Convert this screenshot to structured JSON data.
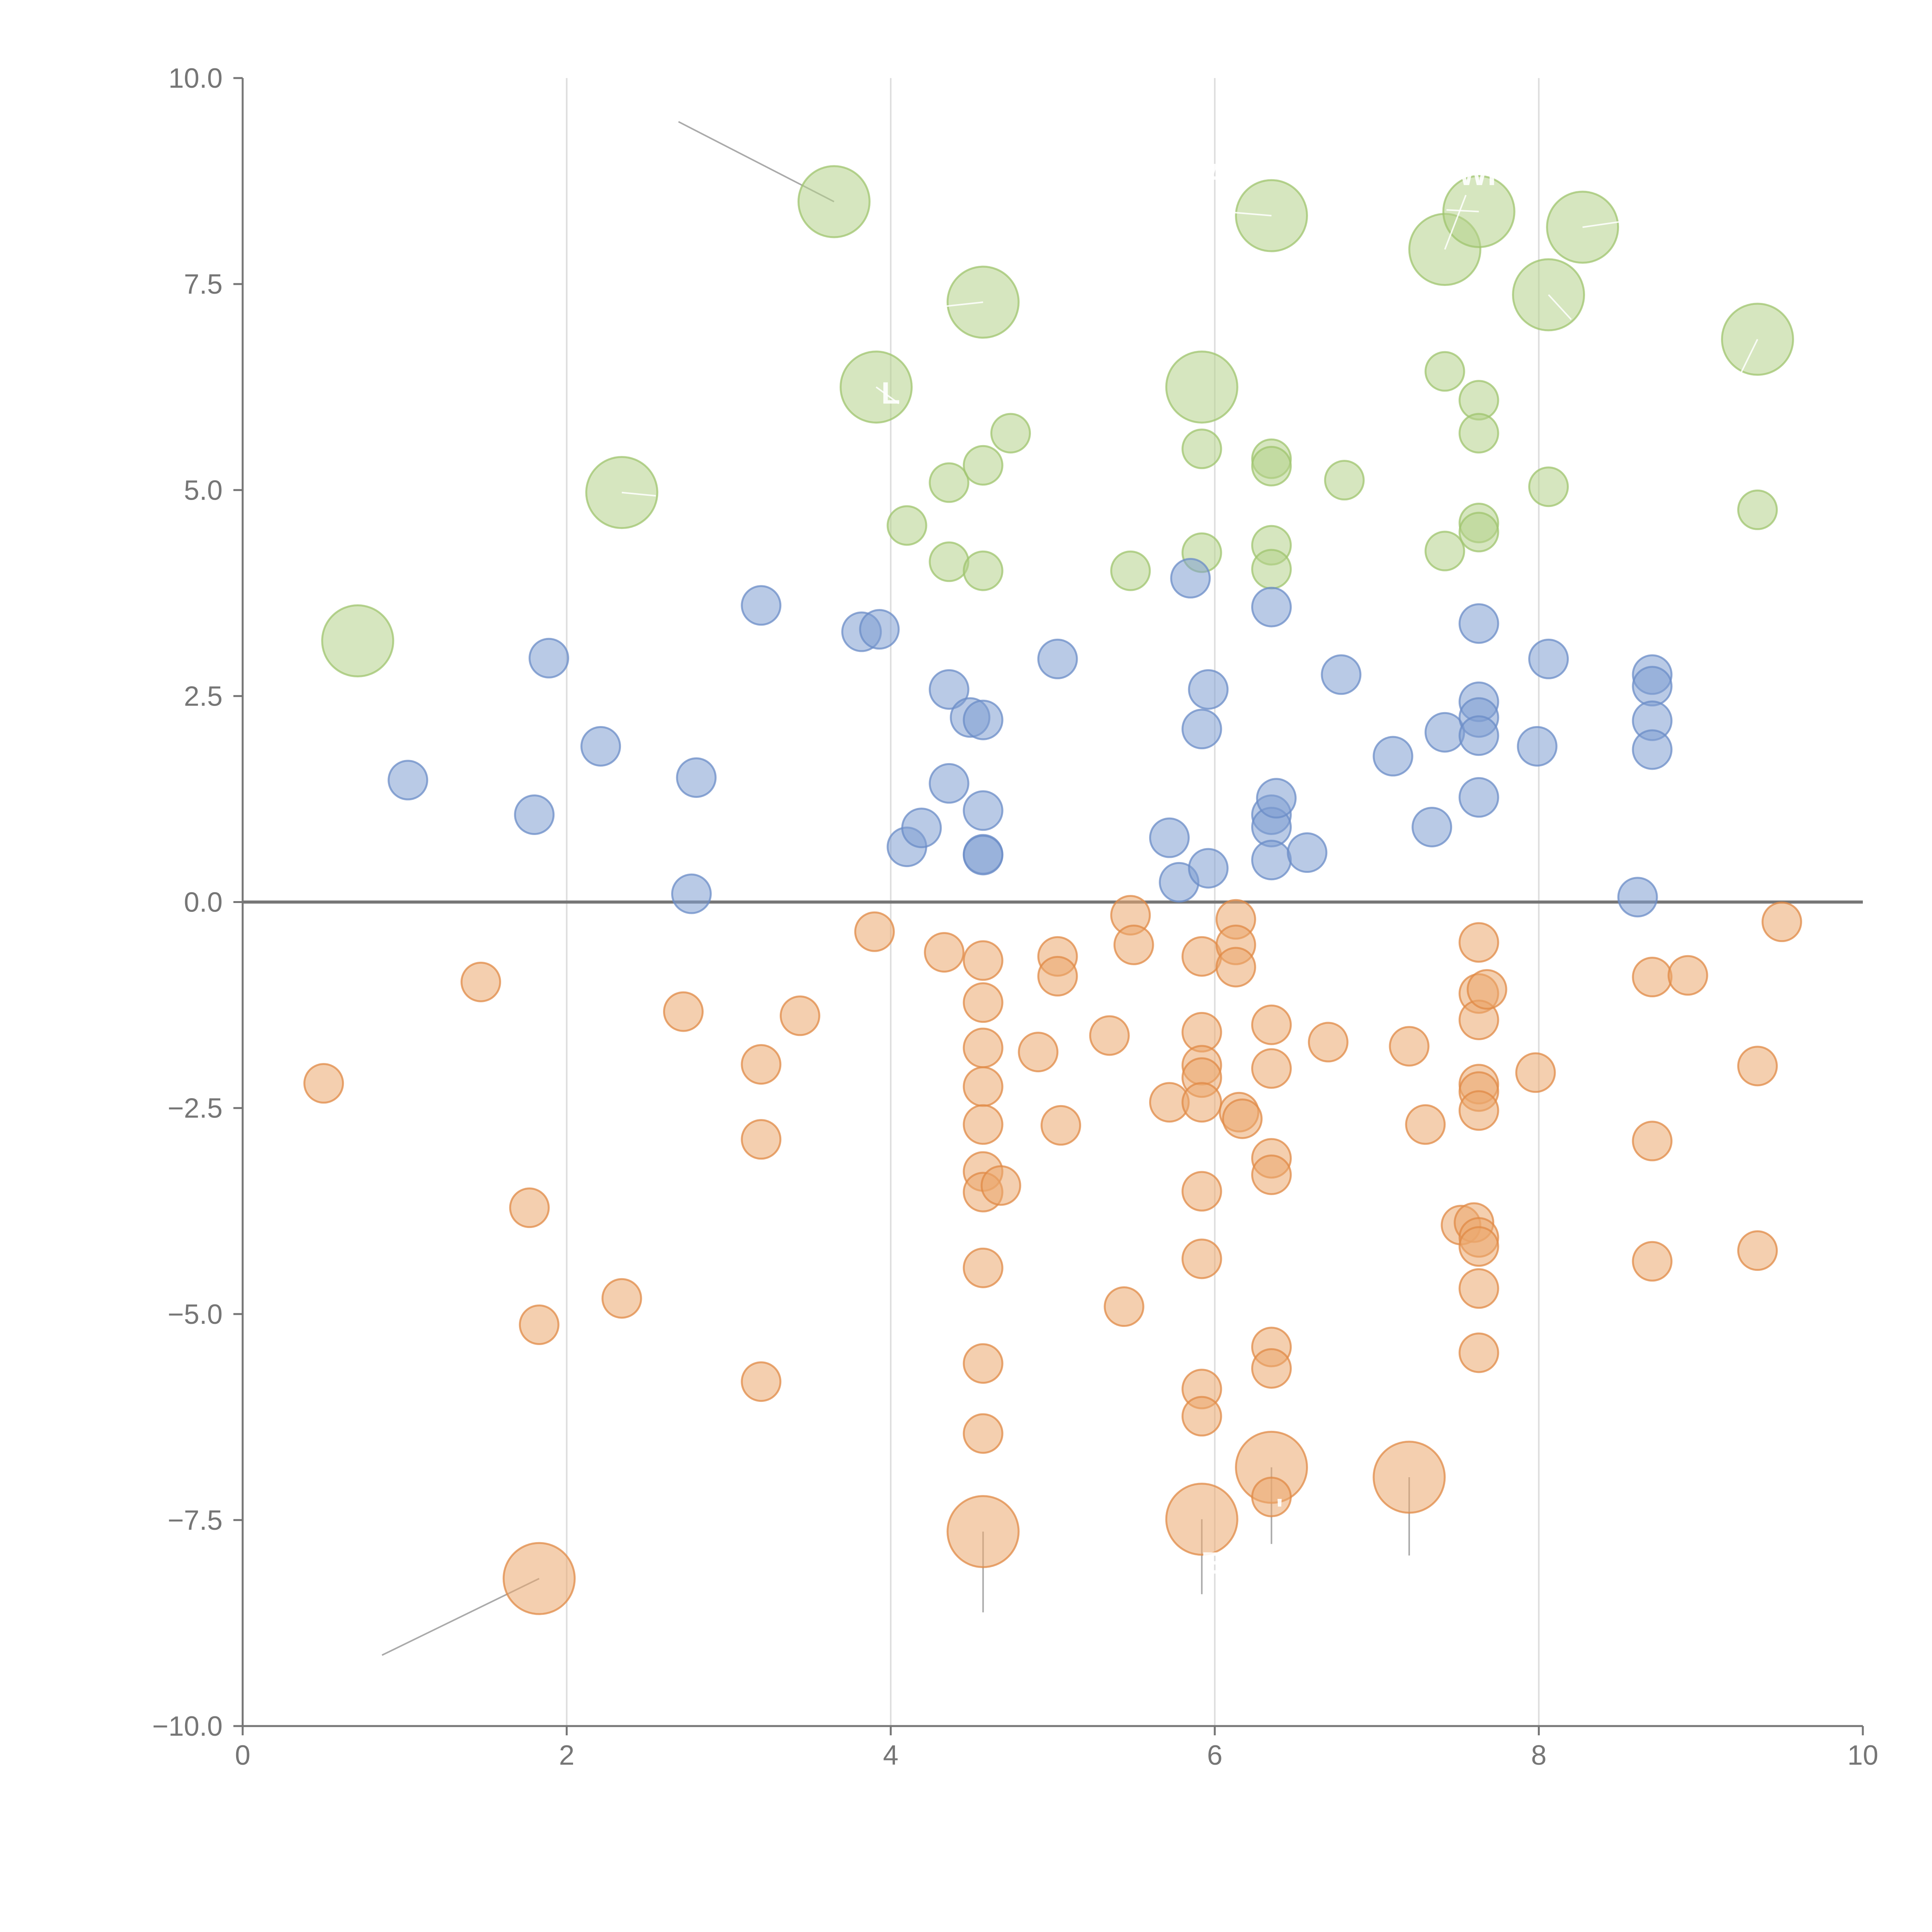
{
  "chart_data": {
    "type": "scatter",
    "title": "",
    "xlabel": "",
    "ylabel": "",
    "xlim": [
      0,
      10
    ],
    "ylim": [
      -10,
      10
    ],
    "grid": "x",
    "zero_line": 0,
    "x_ticks": [
      "0",
      "2",
      "4",
      "6",
      "8",
      "10"
    ],
    "x_tick_values": [
      0,
      2,
      4,
      6,
      8,
      10
    ],
    "y_ticks": [
      "10.0",
      "7.5",
      "5.0",
      "2.5",
      "0.0",
      "−2.5",
      "−5.0",
      "−7.5",
      "−10.0"
    ],
    "y_tick_values": [
      10,
      7.5,
      5,
      2.5,
      0,
      -2.5,
      -5,
      -7.5,
      -10
    ],
    "colors": {
      "green": "#b5d18b",
      "green_stroke": "#9fc46e",
      "blue": "#7f9fd2",
      "blue_stroke": "#6b8cc7",
      "orange": "#eba86e",
      "orange_stroke": "#e08a45",
      "axis": "#767676",
      "grid": "#dddddd"
    },
    "series": [
      {
        "name": "green",
        "color": "#b5d18b",
        "points": [
          [
            0.71,
            3.17,
            2
          ],
          [
            2.34,
            4.97,
            2
          ],
          [
            3.65,
            8.5,
            2
          ],
          [
            3.91,
            6.25,
            2
          ],
          [
            4.57,
            7.28,
            2
          ],
          [
            5.92,
            6.25,
            2
          ],
          [
            6.35,
            8.33,
            2
          ],
          [
            7.42,
            7.92,
            2
          ],
          [
            7.63,
            8.38,
            2
          ],
          [
            8.06,
            7.37,
            2
          ],
          [
            8.27,
            8.19,
            2
          ],
          [
            9.35,
            6.83,
            2
          ],
          [
            4.1,
            4.57,
            1
          ],
          [
            4.36,
            5.09,
            1
          ],
          [
            4.36,
            4.13,
            1
          ],
          [
            4.57,
            5.3,
            1
          ],
          [
            4.57,
            4.02,
            1
          ],
          [
            4.74,
            5.69,
            1
          ],
          [
            5.48,
            4.02,
            1
          ],
          [
            5.92,
            5.5,
            1
          ],
          [
            5.92,
            4.24,
            1
          ],
          [
            6.35,
            5.38,
            1
          ],
          [
            6.35,
            5.29,
            1
          ],
          [
            6.35,
            4.33,
            1
          ],
          [
            6.35,
            4.04,
            1
          ],
          [
            6.8,
            5.12,
            1
          ],
          [
            7.42,
            6.44,
            1
          ],
          [
            7.42,
            4.26,
            1
          ],
          [
            7.63,
            6.09,
            1
          ],
          [
            7.63,
            5.69,
            1
          ],
          [
            7.63,
            4.6,
            1
          ],
          [
            7.63,
            4.49,
            1
          ],
          [
            8.06,
            5.04,
            1
          ],
          [
            9.35,
            4.76,
            1
          ]
        ]
      },
      {
        "name": "blue",
        "color": "#7f9fd2",
        "points": [
          [
            1.02,
            1.48,
            1
          ],
          [
            1.8,
            1.06,
            1
          ],
          [
            1.89,
            2.96,
            1
          ],
          [
            2.21,
            1.89,
            1
          ],
          [
            2.77,
            0.1,
            1
          ],
          [
            2.8,
            1.51,
            1
          ],
          [
            3.2,
            3.6,
            1
          ],
          [
            3.82,
            3.28,
            1
          ],
          [
            3.93,
            3.31,
            1
          ],
          [
            4.1,
            0.67,
            1
          ],
          [
            4.19,
            0.9,
            1
          ],
          [
            4.36,
            2.58,
            1
          ],
          [
            4.36,
            1.44,
            1
          ],
          [
            4.49,
            2.24,
            1
          ],
          [
            4.57,
            2.21,
            1
          ],
          [
            4.57,
            1.11,
            1
          ],
          [
            4.57,
            0.58,
            1
          ],
          [
            4.57,
            0.57,
            1
          ],
          [
            5.03,
            2.95,
            1
          ],
          [
            5.72,
            0.78,
            1
          ],
          [
            5.78,
            0.24,
            1
          ],
          [
            5.85,
            3.93,
            1
          ],
          [
            5.92,
            2.1,
            1
          ],
          [
            5.96,
            2.58,
            1
          ],
          [
            5.96,
            0.41,
            1
          ],
          [
            6.35,
            3.58,
            1
          ],
          [
            6.35,
            1.06,
            1
          ],
          [
            6.35,
            0.91,
            1
          ],
          [
            6.35,
            0.51,
            1
          ],
          [
            6.38,
            1.26,
            1
          ],
          [
            6.57,
            0.6,
            1
          ],
          [
            6.78,
            2.76,
            1
          ],
          [
            7.1,
            1.77,
            1
          ],
          [
            7.34,
            0.91,
            1
          ],
          [
            7.42,
            2.06,
            1
          ],
          [
            7.63,
            3.38,
            1
          ],
          [
            7.63,
            2.43,
            1
          ],
          [
            7.63,
            2.24,
            1
          ],
          [
            7.63,
            2.02,
            1
          ],
          [
            7.63,
            1.27,
            1
          ],
          [
            7.99,
            1.89,
            1
          ],
          [
            8.06,
            2.95,
            1
          ],
          [
            8.61,
            0.06,
            1
          ],
          [
            8.7,
            2.76,
            1
          ],
          [
            8.7,
            2.62,
            1
          ],
          [
            8.7,
            2.2,
            1
          ],
          [
            8.7,
            1.85,
            1
          ]
        ]
      },
      {
        "name": "orange",
        "color": "#eba86e",
        "points": [
          [
            1.83,
            -8.21,
            2
          ],
          [
            4.57,
            -7.64,
            2
          ],
          [
            5.92,
            -7.49,
            2
          ],
          [
            6.35,
            -6.86,
            2
          ],
          [
            7.2,
            -6.98,
            2
          ],
          [
            0.5,
            -2.2,
            1
          ],
          [
            1.47,
            -0.97,
            1
          ],
          [
            1.77,
            -3.71,
            1
          ],
          [
            1.83,
            -5.13,
            1
          ],
          [
            2.34,
            -4.81,
            1
          ],
          [
            2.72,
            -1.33,
            1
          ],
          [
            3.2,
            -1.97,
            1
          ],
          [
            3.2,
            -2.88,
            1
          ],
          [
            3.2,
            -5.82,
            1
          ],
          [
            3.44,
            -1.38,
            1
          ],
          [
            3.9,
            -0.36,
            1
          ],
          [
            4.33,
            -0.61,
            1
          ],
          [
            4.57,
            -0.71,
            1
          ],
          [
            4.57,
            -1.22,
            1
          ],
          [
            4.57,
            -1.77,
            1
          ],
          [
            4.57,
            -2.24,
            1
          ],
          [
            4.57,
            -2.7,
            1
          ],
          [
            4.57,
            -3.27,
            1
          ],
          [
            4.57,
            -3.52,
            1
          ],
          [
            4.57,
            -4.44,
            1
          ],
          [
            4.57,
            -5.6,
            1
          ],
          [
            4.57,
            -6.45,
            1
          ],
          [
            4.68,
            -3.44,
            1
          ],
          [
            4.91,
            -1.82,
            1
          ],
          [
            5.03,
            -0.66,
            1
          ],
          [
            5.03,
            -0.9,
            1
          ],
          [
            5.05,
            -2.71,
            1
          ],
          [
            5.35,
            -1.62,
            1
          ],
          [
            5.44,
            -4.91,
            1
          ],
          [
            5.48,
            -0.16,
            1
          ],
          [
            5.5,
            -0.52,
            1
          ],
          [
            5.72,
            -2.43,
            1
          ],
          [
            5.92,
            -0.66,
            1
          ],
          [
            5.92,
            -1.58,
            1
          ],
          [
            5.92,
            -1.98,
            1
          ],
          [
            5.92,
            -2.13,
            1
          ],
          [
            5.92,
            -2.43,
            1
          ],
          [
            5.92,
            -3.51,
            1
          ],
          [
            5.92,
            -4.33,
            1
          ],
          [
            5.92,
            -5.91,
            1
          ],
          [
            5.92,
            -6.24,
            1
          ],
          [
            6.13,
            -0.21,
            1
          ],
          [
            6.13,
            -0.52,
            1
          ],
          [
            6.13,
            -0.79,
            1
          ],
          [
            6.15,
            -2.55,
            1
          ],
          [
            6.17,
            -2.63,
            1
          ],
          [
            6.35,
            -1.49,
            1
          ],
          [
            6.35,
            -2.02,
            1
          ],
          [
            6.35,
            -3.11,
            1
          ],
          [
            6.35,
            -3.31,
            1
          ],
          [
            6.35,
            -5.4,
            1
          ],
          [
            6.35,
            -5.66,
            1
          ],
          [
            6.35,
            -7.22,
            1
          ],
          [
            6.7,
            -1.7,
            1
          ],
          [
            7.2,
            -1.75,
            1
          ],
          [
            7.3,
            -2.7,
            1
          ],
          [
            7.52,
            -3.92,
            1
          ],
          [
            7.6,
            -3.89,
            1
          ],
          [
            7.63,
            -0.49,
            1
          ],
          [
            7.63,
            -1.11,
            1
          ],
          [
            7.63,
            -1.43,
            1
          ],
          [
            7.63,
            -2.21,
            1
          ],
          [
            7.63,
            -2.3,
            1
          ],
          [
            7.63,
            -2.53,
            1
          ],
          [
            7.63,
            -4.07,
            1
          ],
          [
            7.63,
            -4.18,
            1
          ],
          [
            7.63,
            -4.69,
            1
          ],
          [
            7.63,
            -5.47,
            1
          ],
          [
            7.68,
            -1.06,
            1
          ],
          [
            7.98,
            -2.07,
            1
          ],
          [
            8.7,
            -0.91,
            1
          ],
          [
            8.7,
            -2.9,
            1
          ],
          [
            8.7,
            -4.36,
            1
          ],
          [
            8.92,
            -0.89,
            1
          ],
          [
            9.35,
            -1.99,
            1
          ],
          [
            9.35,
            -4.23,
            1
          ],
          [
            9.5,
            -0.24,
            1
          ]
        ]
      }
    ],
    "annotations": [
      {
        "label": "",
        "x": 3.65,
        "y": 8.5,
        "tx": 2.69,
        "ty": 9.47,
        "series": "green"
      },
      {
        "label": "",
        "x": 1.83,
        "y": -8.21,
        "tx": 0.86,
        "ty": -9.14,
        "series": "orange"
      },
      {
        "label": "",
        "x": 4.57,
        "y": -7.64,
        "tx": 4.57,
        "ty": -8.62,
        "series": "orange"
      },
      {
        "label": "",
        "x": 5.92,
        "y": -7.49,
        "tx": 5.92,
        "ty": -8.4,
        "series": "orange"
      },
      {
        "label": "",
        "x": 6.35,
        "y": -6.86,
        "tx": 6.35,
        "ty": -7.79,
        "series": "orange"
      },
      {
        "label": "",
        "x": 7.2,
        "y": -6.98,
        "tx": 7.2,
        "ty": -7.93,
        "series": "orange"
      },
      {
        "label": "",
        "x": 4.57,
        "y": 7.28,
        "tx": 4.1,
        "ty": 7.18,
        "series": "green"
      },
      {
        "label": "",
        "x": 3.91,
        "y": 6.25,
        "tx": 4.05,
        "ty": 6.05,
        "series": "green"
      },
      {
        "label": "",
        "x": 2.34,
        "y": 4.97,
        "tx": 2.55,
        "ty": 4.93,
        "series": "green"
      },
      {
        "label": "",
        "x": 6.35,
        "y": 8.33,
        "tx": 6.05,
        "ty": 8.38,
        "series": "green"
      },
      {
        "label": "",
        "x": 7.42,
        "y": 7.92,
        "tx": 7.55,
        "ty": 8.58,
        "series": "green"
      },
      {
        "label": "",
        "x": 7.63,
        "y": 8.38,
        "tx": 7.43,
        "ty": 8.4,
        "series": "green"
      },
      {
        "label": "",
        "x": 8.06,
        "y": 7.37,
        "tx": 8.2,
        "ty": 7.07,
        "series": "green"
      },
      {
        "label": "",
        "x": 8.27,
        "y": 8.19,
        "tx": 8.55,
        "ty": 8.27,
        "series": "green"
      },
      {
        "label": "",
        "x": 9.35,
        "y": 6.83,
        "tx": 9.25,
        "ty": 6.43,
        "series": "green"
      }
    ],
    "annotation_glyphs": [
      {
        "text": "SAY",
        "x": 6.0,
        "y": 8.7
      },
      {
        "text": "WI",
        "x": 7.62,
        "y": 8.7
      },
      {
        "text": "L",
        "x": 4.0,
        "y": 6.05
      },
      {
        "text": "E",
        "x": 5.98,
        "y": -8.15
      },
      {
        "text": "'",
        "x": 6.4,
        "y": -7.5
      }
    ]
  }
}
